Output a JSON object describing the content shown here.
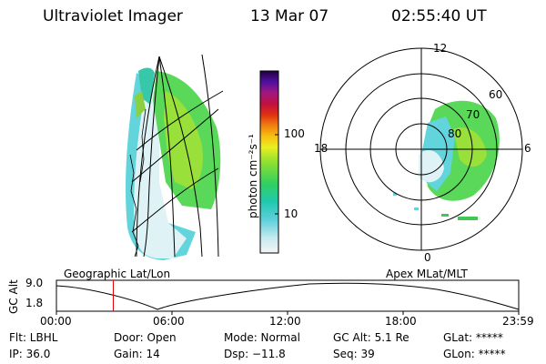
{
  "header": {
    "instrument": "Ultraviolet Imager",
    "date": "13 Mar 07",
    "time": "02:55:40 UT"
  },
  "colorbar": {
    "unit_label": "photon cm⁻²s⁻¹",
    "ticks": [
      "100",
      "10"
    ]
  },
  "polar": {
    "mlt_labels": [
      "12",
      "18",
      "6",
      "0"
    ],
    "lat_labels": [
      "60",
      "70",
      "80"
    ]
  },
  "orbit": {
    "ylabel": "GC Alt",
    "yticks": [
      "9.0",
      "1.8"
    ],
    "left_title": "Geographic Lat/Lon",
    "right_title": "Apex MLat/MLT",
    "xticks": [
      "00:00",
      "06:00",
      "12:00",
      "18:00",
      "23:59"
    ],
    "current_time_fraction": 0.123
  },
  "info": {
    "filter": "Flt: LBHL",
    "ip": "IP: 36.0",
    "door": "Door: Open",
    "gain": "Gain: 14",
    "mode": "Mode: Normal",
    "dsp": "Dsp: −11.8",
    "gc_alt": "GC Alt: 5.1 Re",
    "seq": "Seq: 39",
    "glat": "GLat: *****",
    "glon": "GLon: *****"
  }
}
